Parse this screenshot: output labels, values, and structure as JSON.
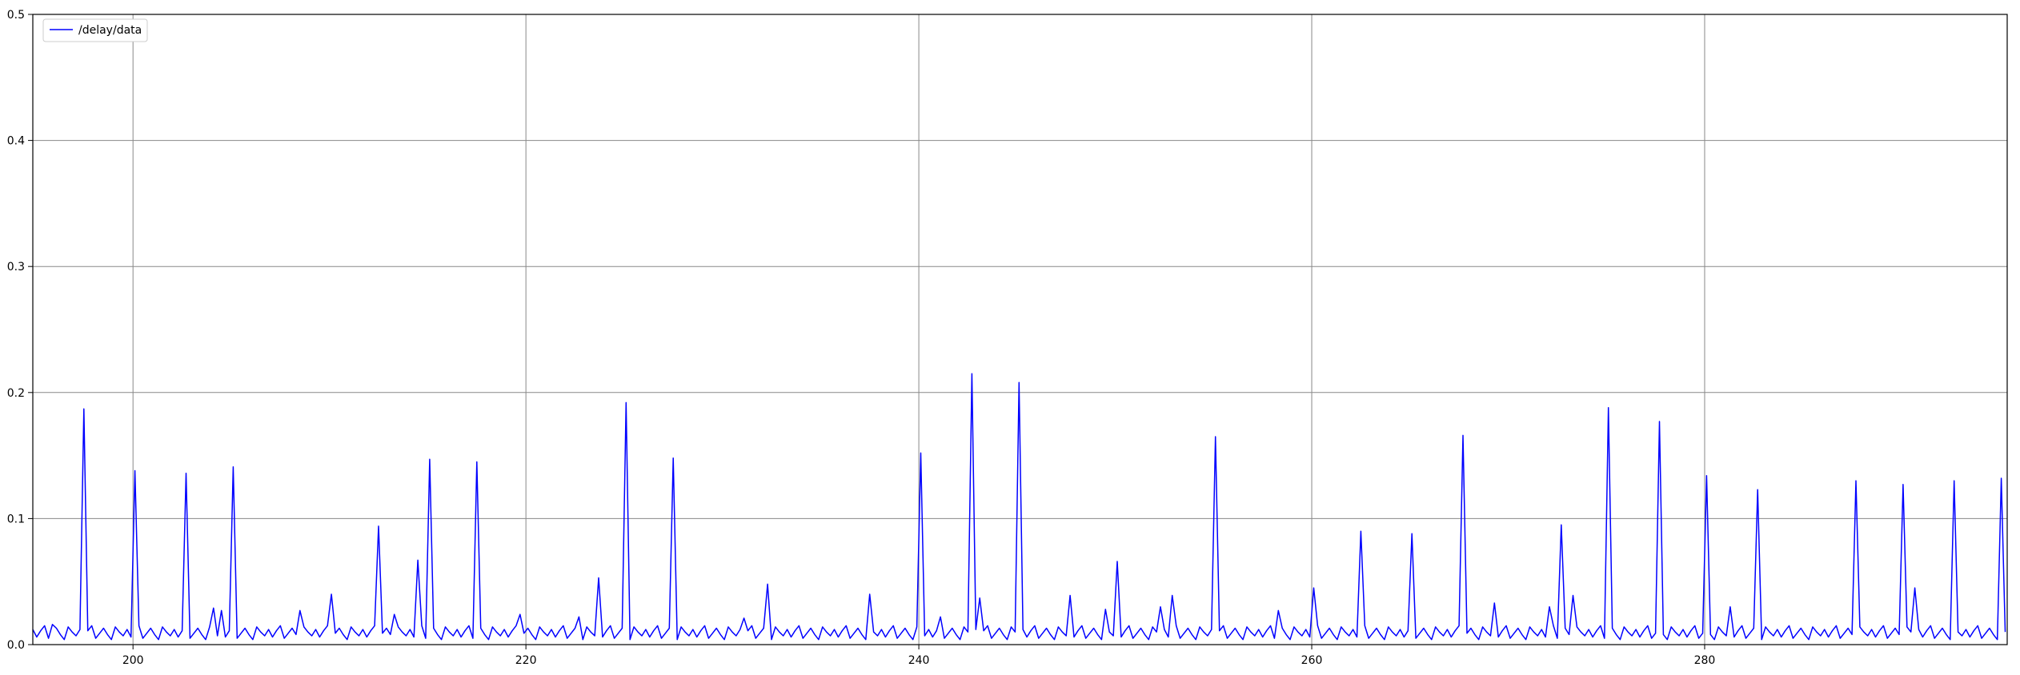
{
  "chart_data": {
    "type": "line",
    "title": "",
    "xlabel": "",
    "ylabel": "",
    "xlim": [
      194.9,
      295.4
    ],
    "ylim": [
      0.0,
      0.5
    ],
    "grid": true,
    "legend_position": "upper-left",
    "x_ticks": [
      200,
      220,
      240,
      260,
      280
    ],
    "x_tick_labels": [
      "200",
      "220",
      "240",
      "260",
      "280"
    ],
    "y_ticks": [
      0.0,
      0.1,
      0.2,
      0.3,
      0.4,
      0.5
    ],
    "y_tick_labels": [
      "0.0",
      "0.1",
      "0.2",
      "0.3",
      "0.4",
      "0.5"
    ],
    "series": [
      {
        "name": "/delay/data",
        "color": "#0000ff",
        "baseline_pattern": [
          0.012,
          0.006,
          0.011,
          0.015,
          0.005,
          0.009,
          0.013,
          0.008,
          0.004,
          0.014,
          0.01,
          0.007
        ],
        "spikes": [
          {
            "x": 195.8,
            "y": 0.016
          },
          {
            "x": 197.5,
            "y": 0.187
          },
          {
            "x": 200.1,
            "y": 0.138
          },
          {
            "x": 202.6,
            "y": 0.136
          },
          {
            "x": 204.1,
            "y": 0.029
          },
          {
            "x": 204.5,
            "y": 0.027
          },
          {
            "x": 205.1,
            "y": 0.141
          },
          {
            "x": 208.4,
            "y": 0.027
          },
          {
            "x": 210.0,
            "y": 0.04
          },
          {
            "x": 212.5,
            "y": 0.094
          },
          {
            "x": 213.3,
            "y": 0.024
          },
          {
            "x": 214.5,
            "y": 0.067
          },
          {
            "x": 215.0,
            "y": 0.147
          },
          {
            "x": 217.5,
            "y": 0.145
          },
          {
            "x": 219.7,
            "y": 0.024
          },
          {
            "x": 222.6,
            "y": 0.022
          },
          {
            "x": 223.6,
            "y": 0.053
          },
          {
            "x": 225.0,
            "y": 0.192
          },
          {
            "x": 227.5,
            "y": 0.148
          },
          {
            "x": 231.0,
            "y": 0.021
          },
          {
            "x": 232.2,
            "y": 0.048
          },
          {
            "x": 237.4,
            "y": 0.04
          },
          {
            "x": 240.1,
            "y": 0.152
          },
          {
            "x": 241.1,
            "y": 0.022
          },
          {
            "x": 242.6,
            "y": 0.215
          },
          {
            "x": 243.1,
            "y": 0.037
          },
          {
            "x": 245.1,
            "y": 0.208
          },
          {
            "x": 247.6,
            "y": 0.039
          },
          {
            "x": 249.5,
            "y": 0.028
          },
          {
            "x": 250.0,
            "y": 0.066
          },
          {
            "x": 252.3,
            "y": 0.03
          },
          {
            "x": 252.8,
            "y": 0.039
          },
          {
            "x": 255.1,
            "y": 0.165
          },
          {
            "x": 258.2,
            "y": 0.027
          },
          {
            "x": 260.0,
            "y": 0.045
          },
          {
            "x": 262.5,
            "y": 0.09
          },
          {
            "x": 265.0,
            "y": 0.088
          },
          {
            "x": 267.6,
            "y": 0.166
          },
          {
            "x": 269.2,
            "y": 0.033
          },
          {
            "x": 272.1,
            "y": 0.03
          },
          {
            "x": 272.6,
            "y": 0.095
          },
          {
            "x": 273.2,
            "y": 0.039
          },
          {
            "x": 275.1,
            "y": 0.188
          },
          {
            "x": 277.6,
            "y": 0.177
          },
          {
            "x": 280.1,
            "y": 0.134
          },
          {
            "x": 281.3,
            "y": 0.03
          },
          {
            "x": 282.6,
            "y": 0.123
          },
          {
            "x": 287.6,
            "y": 0.13
          },
          {
            "x": 290.1,
            "y": 0.127
          },
          {
            "x": 290.6,
            "y": 0.045
          },
          {
            "x": 292.6,
            "y": 0.13
          },
          {
            "x": 295.1,
            "y": 0.132
          }
        ]
      }
    ]
  }
}
